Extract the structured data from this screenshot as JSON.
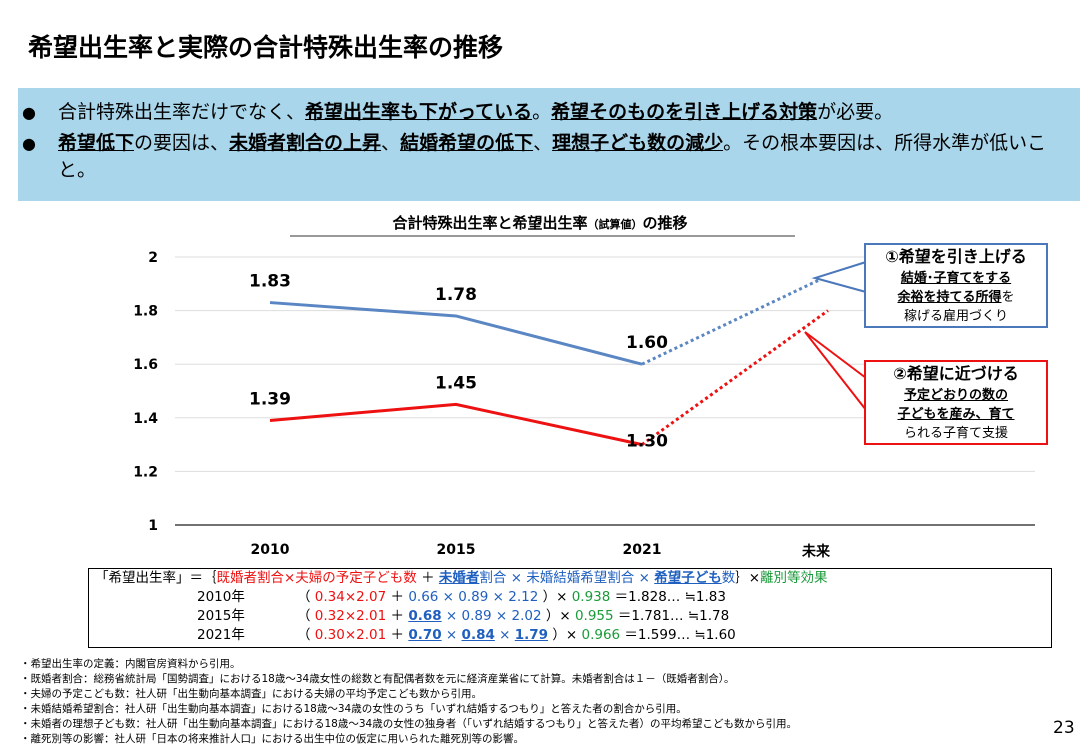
{
  "title": "希望出生率と実際の合計特殊出生率の推移",
  "bullets": [
    {
      "segments": [
        {
          "text": "合計特殊出生率だけでなく、"
        },
        {
          "text": "希望出生率も下がっている",
          "bold": true,
          "underline": true
        },
        {
          "text": "。"
        },
        {
          "text": "希望そのものを引き上げる対策",
          "bold": true,
          "underline": true
        },
        {
          "text": "が必要。"
        }
      ]
    },
    {
      "segments": [
        {
          "text": "希望低下",
          "bold": true,
          "underline": true
        },
        {
          "text": "の要因は、"
        },
        {
          "text": "未婚者割合の上昇",
          "bold": true,
          "underline": true
        },
        {
          "text": "、"
        },
        {
          "text": "結婚希望の低下",
          "bold": true,
          "underline": true
        },
        {
          "text": "、"
        },
        {
          "text": "理想子ども数の減少",
          "bold": true,
          "underline": true
        },
        {
          "text": "。その根本要因は、所得水準が低いこと。"
        }
      ]
    }
  ],
  "chart_data": {
    "type": "line",
    "title_segments": [
      {
        "text": "合計特殊出生率と希望出生率"
      },
      {
        "text": "（試算値）",
        "small": true
      },
      {
        "text": "の推移"
      }
    ],
    "categories": [
      "2010",
      "2015",
      "2021",
      "未来"
    ],
    "series": [
      {
        "color": "#5a86c3",
        "values": [
          1.83,
          1.78,
          1.6,
          1.93
        ],
        "value_labels": [
          "1.83",
          "1.78",
          "1.60",
          null
        ]
      },
      {
        "color": "#ee1111",
        "values": [
          1.39,
          1.45,
          1.3,
          1.8
        ],
        "value_labels": [
          "1.39",
          "1.45",
          "1.30",
          null
        ]
      }
    ],
    "projection_start_index": 2,
    "ylim": [
      1,
      2
    ],
    "yticks": [
      1,
      1.2,
      1.4,
      1.6,
      1.8,
      2
    ],
    "grid": true
  },
  "callouts": [
    {
      "heading": "①希望を引き上げる",
      "color": "#4a78bb",
      "lines": [
        [
          {
            "text": "結婚･子育てをする",
            "bold": true,
            "underline": true
          }
        ],
        [
          {
            "text": "余裕を持てる所得",
            "bold": true,
            "underline": true
          },
          {
            "text": "を"
          }
        ],
        [
          {
            "text": "稼げる雇用づくり"
          }
        ]
      ]
    },
    {
      "heading": "②希望に近づける",
      "color": "#ee1111",
      "lines": [
        [
          {
            "text": "予定どおりの数の",
            "bold": true,
            "underline": true
          }
        ],
        [
          {
            "text": "子どもを産み、育て",
            "bold": true,
            "underline": true
          }
        ],
        [
          {
            "text": "られる子育て支援"
          }
        ]
      ]
    }
  ],
  "formula": {
    "header": [
      {
        "text": "「希望出生率」＝｛"
      },
      {
        "text": "既婚者割合×夫婦の予定子ども数",
        "color": "#ee1111"
      },
      {
        "text": " ＋ "
      },
      {
        "text": "未婚者",
        "color": "#1f5fbf",
        "bold": true,
        "underline": true
      },
      {
        "text": "割合 × 未婚結婚希望割合 × ",
        "color": "#1f5fbf"
      },
      {
        "text": "希望子ども",
        "color": "#1f5fbf",
        "bold": true,
        "underline": true
      },
      {
        "text": "数",
        "color": "#1f5fbf"
      },
      {
        "text": "｝×"
      },
      {
        "text": "離別等効果",
        "color": "#1a9a3a"
      }
    ],
    "rows": [
      {
        "year": "2010年",
        "segments": [
          {
            "text": "（ "
          },
          {
            "text": "0.34×2.07",
            "color": "#ee1111"
          },
          {
            "text": " ＋ "
          },
          {
            "text": "0.66 × 0.89 × 2.12",
            "color": "#1f5fbf"
          },
          {
            "text": " ）× "
          },
          {
            "text": "0.938",
            "color": "#1a9a3a"
          },
          {
            "text": " ＝1.828… ≒1.83"
          }
        ]
      },
      {
        "year": "2015年",
        "segments": [
          {
            "text": "（ "
          },
          {
            "text": "0.32×2.01",
            "color": "#ee1111"
          },
          {
            "text": " ＋ "
          },
          {
            "text": "0.68",
            "color": "#1f5fbf",
            "bold": true,
            "underline": true
          },
          {
            "text": " × 0.89 × 2.02",
            "color": "#1f5fbf"
          },
          {
            "text": " ）× "
          },
          {
            "text": "0.955",
            "color": "#1a9a3a"
          },
          {
            "text": " ＝1.781… ≒1.78"
          }
        ]
      },
      {
        "year": "2021年",
        "segments": [
          {
            "text": "（ "
          },
          {
            "text": "0.30×2.01",
            "color": "#ee1111"
          },
          {
            "text": " ＋ "
          },
          {
            "text": "0.70",
            "color": "#1f5fbf",
            "bold": true,
            "underline": true
          },
          {
            "text": " × ",
            "color": "#1f5fbf"
          },
          {
            "text": "0.84",
            "color": "#1f5fbf",
            "bold": true,
            "underline": true
          },
          {
            "text": " × ",
            "color": "#1f5fbf"
          },
          {
            "text": "1.79",
            "color": "#1f5fbf",
            "bold": true,
            "underline": true
          },
          {
            "text": " ）× "
          },
          {
            "text": "0.966",
            "color": "#1a9a3a"
          },
          {
            "text": " ＝1.599… ≒1.60"
          }
        ]
      }
    ]
  },
  "footnotes": [
    "・希望出生率の定義：内閣官房資料から引用。",
    "・既婚者割合：総務省統計局「国勢調査」における18歳～34歳女性の総数と有配偶者数を元に経済産業省にて計算。未婚者割合は１－（既婚者割合）。",
    "・夫婦の予定こども数：社人研「出生動向基本調査」における夫婦の平均予定こども数から引用。",
    "・未婚結婚希望割合：社人研「出生動向基本調査」における18歳～34歳の女性のうち「いずれ結婚するつもり」と答えた者の割合から引用。",
    "・未婚者の理想子ども数：社人研「出生動向基本調査」における18歳～34歳の女性の独身者（「いずれ結婚するつもり」と答えた者）の平均希望こども数から引用。",
    "・離死別等の影響：社人研「日本の将来推計人口」における出生中位の仮定に用いられた離死別等の影響。"
  ],
  "page_number": "23"
}
